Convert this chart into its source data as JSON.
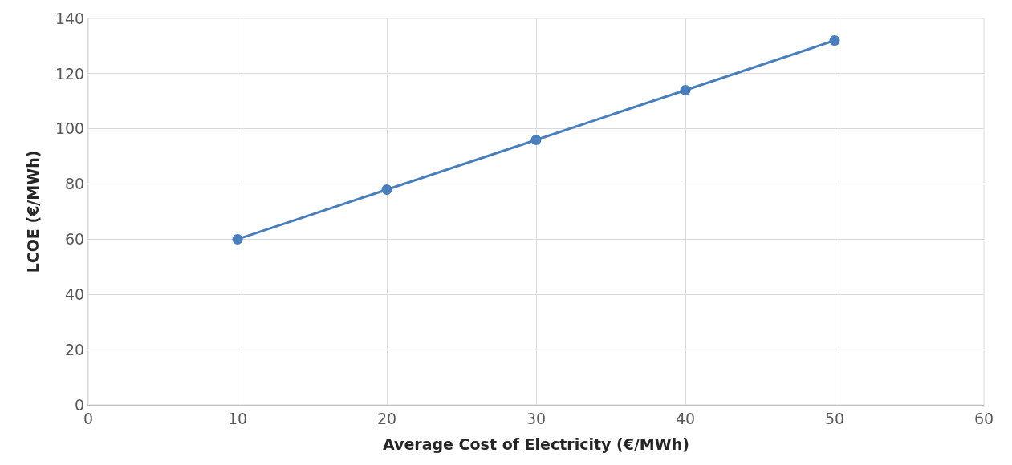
{
  "chart_data": {
    "type": "line",
    "xlabel": "Average Cost of Electricity (€/MWh)",
    "ylabel": "LCOE (€/MWh)",
    "x": [
      10,
      20,
      30,
      40,
      50
    ],
    "series": [
      {
        "color": "#4a7ebb",
        "values": [
          60,
          78,
          96,
          114,
          132
        ]
      }
    ],
    "xlim": [
      0,
      60
    ],
    "xticks": [
      0,
      10,
      20,
      30,
      40,
      50,
      60
    ],
    "ylim": [
      0,
      140
    ],
    "yticks": [
      0,
      20,
      40,
      60,
      80,
      100,
      120,
      140
    ],
    "grid": true,
    "marker": "circle",
    "line_style": "solid"
  }
}
